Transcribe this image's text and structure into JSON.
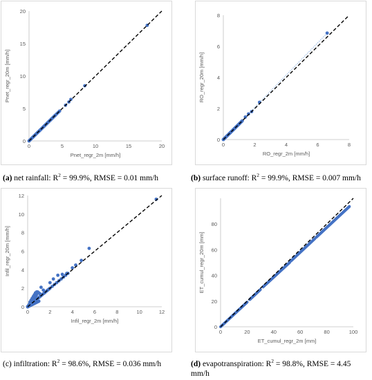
{
  "chart_data": [
    {
      "type": "scatter",
      "panel": "a",
      "xlabel": "Pnet_regr_2m [mm/h]",
      "ylabel": "Pnet_regr_20m [mm/h]",
      "xlim": [
        0,
        20
      ],
      "ylim": [
        0,
        20
      ],
      "xticks": [
        0,
        5,
        10,
        15,
        20
      ],
      "yticks": [
        0,
        5,
        10,
        15,
        20
      ],
      "reference_line": "1:1 dashed",
      "point_color": "#4472c4",
      "points": [
        [
          0.0,
          0.0
        ],
        [
          0.1,
          0.1
        ],
        [
          0.2,
          0.2
        ],
        [
          0.3,
          0.3
        ],
        [
          0.4,
          0.4
        ],
        [
          0.5,
          0.5
        ],
        [
          0.6,
          0.6
        ],
        [
          0.7,
          0.7
        ],
        [
          0.8,
          0.8
        ],
        [
          0.9,
          0.9
        ],
        [
          1.0,
          1.0
        ],
        [
          1.1,
          1.1
        ],
        [
          1.2,
          1.2
        ],
        [
          1.3,
          1.3
        ],
        [
          1.4,
          1.4
        ],
        [
          1.5,
          1.5
        ],
        [
          1.6,
          1.6
        ],
        [
          1.7,
          1.7
        ],
        [
          1.8,
          1.8
        ],
        [
          1.9,
          1.9
        ],
        [
          2.0,
          2.0
        ],
        [
          2.1,
          2.1
        ],
        [
          2.2,
          2.2
        ],
        [
          2.3,
          2.3
        ],
        [
          2.4,
          2.4
        ],
        [
          2.5,
          2.5
        ],
        [
          2.6,
          2.6
        ],
        [
          2.7,
          2.7
        ],
        [
          2.8,
          2.8
        ],
        [
          2.9,
          2.9
        ],
        [
          3.0,
          3.0
        ],
        [
          3.1,
          3.1
        ],
        [
          3.2,
          3.2
        ],
        [
          3.3,
          3.3
        ],
        [
          3.4,
          3.4
        ],
        [
          3.5,
          3.5
        ],
        [
          3.6,
          3.6
        ],
        [
          3.7,
          3.7
        ],
        [
          3.8,
          3.8
        ],
        [
          3.9,
          3.9
        ],
        [
          4.0,
          4.0
        ],
        [
          4.2,
          4.2
        ],
        [
          4.4,
          4.4
        ],
        [
          4.6,
          4.6
        ],
        [
          5.5,
          5.5
        ],
        [
          6.0,
          6.0
        ],
        [
          6.3,
          6.4
        ],
        [
          8.4,
          8.5
        ],
        [
          17.8,
          17.8
        ]
      ]
    },
    {
      "type": "scatter",
      "panel": "b",
      "xlabel": "RO_regr_2m [mm/h]",
      "ylabel": "RO_regr_20m [mm/h]",
      "xlim": [
        0,
        8
      ],
      "ylim": [
        0,
        8
      ],
      "xticks": [
        0,
        2,
        4,
        6,
        8
      ],
      "yticks": [
        0,
        2,
        4,
        6,
        8
      ],
      "reference_line": "1:1 dashed",
      "trendline": "dotted light blue",
      "point_color": "#4472c4",
      "points": [
        [
          0.0,
          0.0
        ],
        [
          0.05,
          0.05
        ],
        [
          0.1,
          0.1
        ],
        [
          0.15,
          0.15
        ],
        [
          0.2,
          0.2
        ],
        [
          0.25,
          0.25
        ],
        [
          0.3,
          0.3
        ],
        [
          0.35,
          0.35
        ],
        [
          0.4,
          0.4
        ],
        [
          0.45,
          0.45
        ],
        [
          0.5,
          0.5
        ],
        [
          0.55,
          0.55
        ],
        [
          0.6,
          0.6
        ],
        [
          0.65,
          0.65
        ],
        [
          0.7,
          0.7
        ],
        [
          0.75,
          0.75
        ],
        [
          0.8,
          0.8
        ],
        [
          0.85,
          0.85
        ],
        [
          0.9,
          0.9
        ],
        [
          0.95,
          0.95
        ],
        [
          1.0,
          1.0
        ],
        [
          1.05,
          1.05
        ],
        [
          1.1,
          1.1
        ],
        [
          1.15,
          1.15
        ],
        [
          1.2,
          1.2
        ],
        [
          1.4,
          1.45
        ],
        [
          1.6,
          1.65
        ],
        [
          1.8,
          1.8
        ],
        [
          2.3,
          2.4
        ],
        [
          6.6,
          6.85
        ]
      ]
    },
    {
      "type": "scatter",
      "panel": "c",
      "xlabel": "Infil_regr_2m [mm/h]",
      "ylabel": "Infil_regr_20m [mm/h]",
      "xlim": [
        0,
        12
      ],
      "ylim": [
        0,
        12
      ],
      "xticks": [
        0,
        2,
        4,
        6,
        8,
        10,
        12
      ],
      "yticks": [
        0,
        2,
        4,
        6,
        8,
        10,
        12
      ],
      "reference_line": "1:1 dashed",
      "point_color": "#4472c4",
      "points": [
        [
          0.0,
          0.0
        ],
        [
          0.1,
          0.1
        ],
        [
          0.2,
          0.2
        ],
        [
          0.3,
          0.3
        ],
        [
          0.4,
          0.4
        ],
        [
          0.5,
          0.5
        ],
        [
          0.6,
          0.6
        ],
        [
          0.7,
          0.7
        ],
        [
          0.8,
          0.8
        ],
        [
          0.9,
          0.9
        ],
        [
          1.0,
          1.0
        ],
        [
          1.1,
          1.1
        ],
        [
          1.2,
          1.2
        ],
        [
          1.3,
          1.3
        ],
        [
          1.4,
          1.4
        ],
        [
          1.5,
          1.5
        ],
        [
          1.6,
          1.6
        ],
        [
          1.7,
          1.7
        ],
        [
          1.8,
          1.8
        ],
        [
          1.9,
          1.9
        ],
        [
          2.0,
          2.0
        ],
        [
          2.2,
          2.2
        ],
        [
          2.4,
          2.4
        ],
        [
          2.6,
          2.6
        ],
        [
          2.8,
          2.8
        ],
        [
          3.0,
          3.0
        ],
        [
          3.2,
          3.2
        ],
        [
          3.4,
          3.4
        ],
        [
          3.6,
          3.6
        ],
        [
          0.2,
          0.5
        ],
        [
          0.3,
          0.7
        ],
        [
          0.4,
          0.9
        ],
        [
          0.5,
          1.1
        ],
        [
          0.6,
          1.3
        ],
        [
          0.7,
          1.5
        ],
        [
          0.8,
          1.6
        ],
        [
          0.5,
          0.9
        ],
        [
          0.6,
          1.0
        ],
        [
          0.7,
          1.2
        ],
        [
          0.9,
          1.6
        ],
        [
          1.0,
          1.5
        ],
        [
          1.2,
          2.1
        ],
        [
          1.1,
          1.4
        ],
        [
          1.4,
          1.8
        ],
        [
          2.0,
          2.6
        ],
        [
          2.3,
          3.0
        ],
        [
          2.7,
          3.4
        ],
        [
          3.1,
          3.5
        ],
        [
          3.5,
          3.6
        ],
        [
          4.0,
          4.2
        ],
        [
          4.3,
          4.5
        ],
        [
          4.8,
          5.0
        ],
        [
          5.5,
          6.3
        ],
        [
          11.5,
          11.6
        ]
      ]
    },
    {
      "type": "scatter",
      "panel": "d",
      "xlabel": "ET_cumul_regr_2m [mm]",
      "ylabel": "ET_cumul_regr_20m [mm]",
      "xlim": [
        0,
        100
      ],
      "ylim": [
        0,
        100
      ],
      "xticks": [
        0,
        20,
        40,
        60,
        80,
        100
      ],
      "yticks": [
        0,
        20,
        40,
        60,
        80
      ],
      "reference_line": "1:1 dashed",
      "point_color": "#4472c4",
      "segments": [
        [
          0,
          0,
          20,
          19.2
        ],
        [
          22,
          21.2,
          30,
          29
        ],
        [
          32,
          31,
          52,
          50
        ],
        [
          53,
          51.2,
          71,
          68.6
        ],
        [
          72,
          69.6,
          97,
          93.6
        ]
      ]
    }
  ],
  "captions": {
    "a": {
      "letter": "(a)",
      "pre": " net rainfall: R",
      "sup": "2",
      "post": " = 99.9%, RMSE = 0.01 mm/h"
    },
    "b": {
      "letter": "(b)",
      "pre": " surface runoff: R",
      "sup": "2",
      "post": " = 99.9%, RMSE = 0.007 mm/h"
    },
    "c": {
      "letter": "(c)",
      "pre": " infiltration: R",
      "sup": "2",
      "post": " = 98.6%, RMSE = 0.036 mm/h"
    },
    "d": {
      "letter": "(d)",
      "pre": " evapotranspiration:  R",
      "sup": "2",
      "post": " = 98.8%,  RMSE = 4.45",
      "post2": "mm/h"
    }
  }
}
